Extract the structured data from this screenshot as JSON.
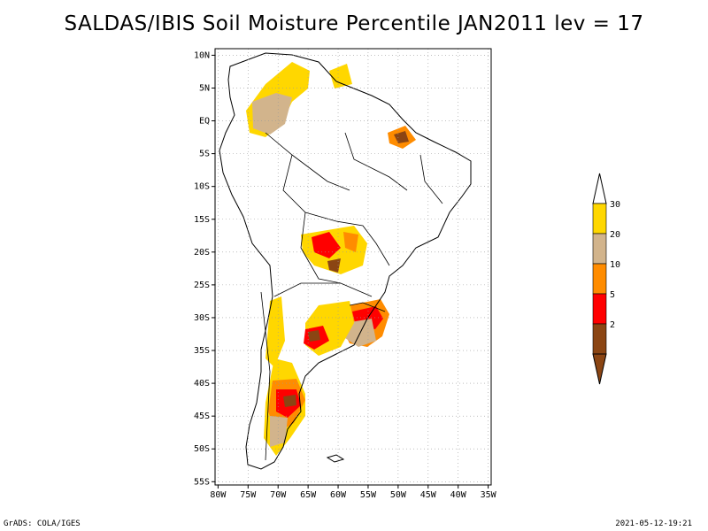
{
  "title": "SALDAS/IBIS Soil Moisture Percentile JAN2011 lev = 17",
  "map": {
    "lat_labels": [
      "10N",
      "5N",
      "EQ",
      "5S",
      "10S",
      "15S",
      "20S",
      "25S",
      "30S",
      "35S",
      "40S",
      "45S",
      "50S",
      "55S"
    ],
    "lon_labels": [
      "80W",
      "75W",
      "70W",
      "65W",
      "60W",
      "55W",
      "50W",
      "45W",
      "40W",
      "35W"
    ],
    "lat_range": [
      11,
      -55.5
    ],
    "lon_range": [
      -80.5,
      -34.5
    ]
  },
  "legend": {
    "items": [
      {
        "label": "30",
        "color": "#ffd700"
      },
      {
        "label": "20",
        "color": "#d2b48c"
      },
      {
        "label": "10",
        "color": "#ff8c00"
      },
      {
        "label": "5",
        "color": "#ff0000"
      },
      {
        "label": "2",
        "color": "#8b4513"
      }
    ]
  },
  "colors": {
    "p30": "#ffd700",
    "p20": "#d2b48c",
    "p10": "#ff8c00",
    "p5": "#ff0000",
    "p2": "#8b4513"
  },
  "footer": {
    "left": "GrADS: COLA/IGES",
    "right": "2021-05-12-19:21"
  }
}
